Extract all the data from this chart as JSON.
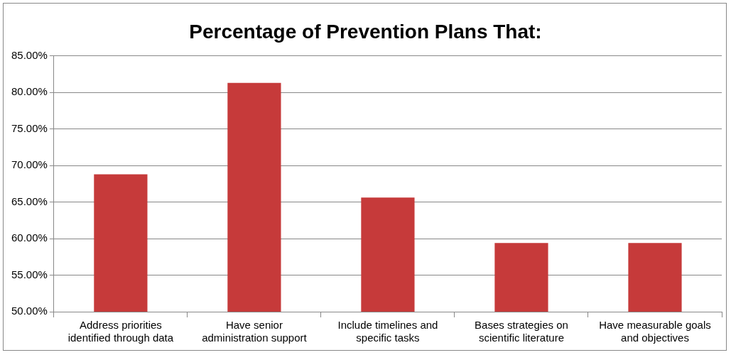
{
  "chart_data": {
    "type": "bar",
    "title": "Percentage of Prevention Plans That:",
    "categories": [
      "Address priorities identified through data",
      "Have senior administration support",
      "Include timelines and specific tasks",
      "Bases strategies on scientific literature",
      "Have measurable goals and objectives"
    ],
    "values": [
      68.8,
      81.3,
      65.6,
      59.4,
      59.4
    ],
    "color": "#c63a3a",
    "ylim": [
      50,
      85
    ],
    "yticks": [
      {
        "value": 50,
        "label": "50.00%"
      },
      {
        "value": 55,
        "label": "55.00%"
      },
      {
        "value": 60,
        "label": "60.00%"
      },
      {
        "value": 65,
        "label": "65.00%"
      },
      {
        "value": 70,
        "label": "70.00%"
      },
      {
        "value": 75,
        "label": "75.00%"
      },
      {
        "value": 80,
        "label": "80.00%"
      },
      {
        "value": 85,
        "label": "85.00%"
      }
    ],
    "grid": "y",
    "legend": false
  }
}
